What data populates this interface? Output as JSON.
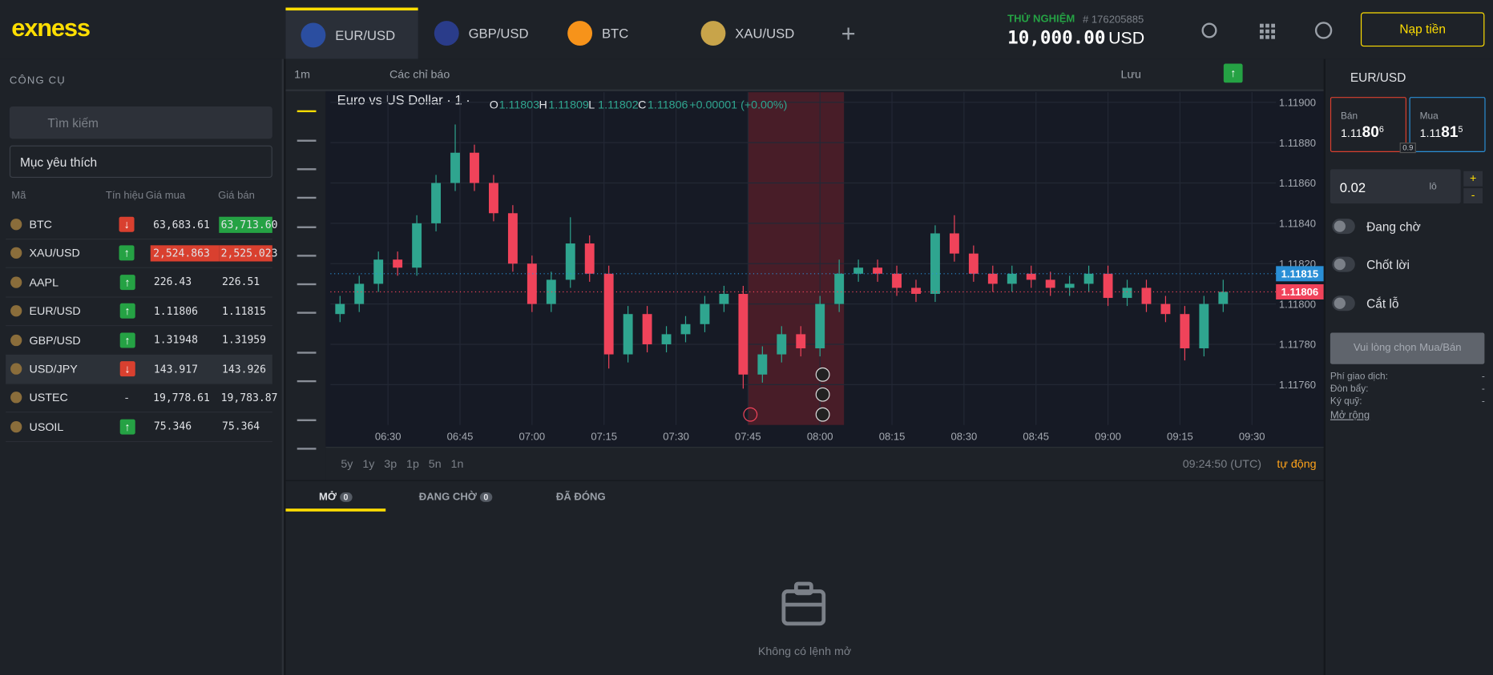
{
  "header": {
    "logo": "exness",
    "tabs": [
      "EUR/USD",
      "GBP/USD",
      "BTC",
      "XAU/USD"
    ],
    "mode": "THỬ NGHIỆM",
    "account_id": "# 176205885",
    "balance": "10,000.00",
    "currency": "USD",
    "deposit": "Nạp tiền"
  },
  "sidebar": {
    "title": "CÔNG CỤ",
    "search": "Tìm kiếm",
    "list": "Mục yêu thích",
    "columns": [
      "Mã",
      "Tín hiệu",
      "Giá mua",
      "Giá bán"
    ],
    "rows": [
      {
        "symbol": "BTC",
        "signal": "↓",
        "bid": "63,683.61",
        "ask": "63,713.60",
        "ask_bg": "#25a244"
      },
      {
        "symbol": "XAU/USD",
        "signal": "↑",
        "bid": "2,524.863",
        "ask": "2,525.023",
        "bid_bg": "#d9402f",
        "ask_bg": "#d9402f"
      },
      {
        "symbol": "AAPL",
        "signal": "↑",
        "bid": "226.43",
        "ask": "226.51"
      },
      {
        "symbol": "EUR/USD",
        "signal": "↑",
        "bid": "1.11806",
        "ask": "1.11815"
      },
      {
        "symbol": "GBP/USD",
        "signal": "↑",
        "bid": "1.31948",
        "ask": "1.31959"
      },
      {
        "symbol": "USD/JPY",
        "signal": "↓",
        "bid": "143.917",
        "ask": "143.926"
      },
      {
        "symbol": "USTEC",
        "signal": "-",
        "bid": "19,778.61",
        "ask": "19,783.87"
      },
      {
        "symbol": "USOIL",
        "signal": "↑",
        "bid": "75.346",
        "ask": "75.364"
      }
    ]
  },
  "toolbar": {
    "interval": "1m",
    "indicators": "Các chỉ báo",
    "save": "Lưu"
  },
  "chart_data": {
    "type": "candlestick",
    "title": "Euro vs US Dollar · 1 ·",
    "ohlc": [
      {
        "label": "O",
        "value": "1.11803"
      },
      {
        "label": "H",
        "value": "1.11809"
      },
      {
        "label": "L",
        "value": "1.11802"
      },
      {
        "label": "C",
        "value": "1.11806"
      }
    ],
    "change": "+0.00001 (+0.00%)",
    "x": [
      "06:20",
      "06:24",
      "06:28",
      "06:32",
      "06:36",
      "06:40",
      "06:44",
      "06:48",
      "06:52",
      "06:56",
      "07:00",
      "07:04",
      "07:08",
      "07:12",
      "07:16",
      "07:20",
      "07:24",
      "07:28",
      "07:32",
      "07:36",
      "07:40",
      "07:44",
      "07:48",
      "07:52",
      "07:56",
      "08:00",
      "08:04",
      "08:08",
      "08:12",
      "08:16",
      "08:20",
      "08:24",
      "08:28",
      "08:32",
      "08:36",
      "08:40",
      "08:44",
      "08:48",
      "08:52",
      "08:56",
      "09:00",
      "09:04",
      "09:08",
      "09:12",
      "09:16",
      "09:20",
      "09:24"
    ],
    "open": [
      1.11795,
      1.118,
      1.1181,
      1.11822,
      1.11818,
      1.1184,
      1.1186,
      1.11875,
      1.1186,
      1.11845,
      1.1182,
      1.118,
      1.11812,
      1.1183,
      1.11815,
      1.11775,
      1.11795,
      1.1178,
      1.11785,
      1.1179,
      1.118,
      1.11805,
      1.11765,
      1.11775,
      1.11785,
      1.11778,
      1.118,
      1.11815,
      1.11818,
      1.11815,
      1.11808,
      1.11805,
      1.11835,
      1.11825,
      1.11815,
      1.1181,
      1.11815,
      1.11812,
      1.11808,
      1.1181,
      1.11815,
      1.11803,
      1.11808,
      1.118,
      1.11795,
      1.11778,
      1.118
    ],
    "high": [
      1.11804,
      1.11814,
      1.11826,
      1.11826,
      1.11844,
      1.11864,
      1.11889,
      1.11879,
      1.11864,
      1.11849,
      1.11824,
      1.11816,
      1.11843,
      1.11834,
      1.11819,
      1.11799,
      1.11799,
      1.11789,
      1.11794,
      1.11804,
      1.11809,
      1.11809,
      1.11779,
      1.11789,
      1.11789,
      1.11804,
      1.11822,
      1.11822,
      1.11822,
      1.11819,
      1.11812,
      1.11839,
      1.11844,
      1.11829,
      1.11819,
      1.11819,
      1.11819,
      1.11816,
      1.11814,
      1.11819,
      1.11819,
      1.11812,
      1.11812,
      1.11804,
      1.11799,
      1.11804,
      1.11812
    ],
    "low": [
      1.11791,
      1.11796,
      1.11806,
      1.11814,
      1.11814,
      1.11836,
      1.11856,
      1.11856,
      1.11841,
      1.11816,
      1.11796,
      1.11796,
      1.11808,
      1.11811,
      1.11768,
      1.11771,
      1.11776,
      1.11776,
      1.11781,
      1.11786,
      1.11796,
      1.11758,
      1.11761,
      1.11771,
      1.11774,
      1.11774,
      1.11796,
      1.11811,
      1.11811,
      1.11804,
      1.11801,
      1.11801,
      1.11821,
      1.11811,
      1.11806,
      1.11806,
      1.11808,
      1.11804,
      1.11804,
      1.11806,
      1.11799,
      1.11799,
      1.11796,
      1.11791,
      1.11772,
      1.11774,
      1.11796
    ],
    "close": [
      1.118,
      1.1181,
      1.11822,
      1.11818,
      1.1184,
      1.1186,
      1.11875,
      1.1186,
      1.11845,
      1.1182,
      1.118,
      1.11812,
      1.1183,
      1.11815,
      1.11775,
      1.11795,
      1.1178,
      1.11785,
      1.1179,
      1.118,
      1.11805,
      1.11765,
      1.11775,
      1.11785,
      1.11778,
      1.118,
      1.11815,
      1.11818,
      1.11815,
      1.11808,
      1.11805,
      1.11835,
      1.11825,
      1.11815,
      1.1181,
      1.11815,
      1.11812,
      1.11808,
      1.1181,
      1.11815,
      1.11803,
      1.11808,
      1.118,
      1.11795,
      1.11778,
      1.118,
      1.11806
    ],
    "up_color": "#2fa58f",
    "down_color": "#f0435a",
    "xlim": [
      "06:18",
      "09:35"
    ],
    "xticks": [
      "06:30",
      "06:45",
      "07:00",
      "07:15",
      "07:30",
      "07:45",
      "08:00",
      "08:15",
      "08:30",
      "08:45",
      "09:00",
      "09:15",
      "09:30"
    ],
    "ylim": [
      1.1174,
      1.11905
    ],
    "yticks": [
      {
        "value": 1.1176,
        "label": "1.11760"
      },
      {
        "value": 1.1178,
        "label": "1.11780"
      },
      {
        "value": 1.118,
        "label": "1.11800"
      },
      {
        "value": 1.1182,
        "label": "1.11820"
      },
      {
        "value": 1.1184,
        "label": "1.11840"
      },
      {
        "value": 1.1186,
        "label": "1.11860"
      },
      {
        "value": 1.1188,
        "label": "1.11880"
      },
      {
        "value": 1.119,
        "label": "1.11900"
      }
    ],
    "ask_line": 1.11815,
    "bid_line": 1.11806,
    "highlight": [
      "07:45",
      "08:05"
    ],
    "grid": true
  },
  "chart_footer": {
    "ranges": [
      "5y",
      "1y",
      "3p",
      "1p",
      "5n",
      "1n"
    ],
    "clock": "09:24:50 (UTC)",
    "auto": "tự động"
  },
  "bottom": {
    "tabs": [
      {
        "label": "MỞ",
        "count": 0
      },
      {
        "label": "ĐANG CHỜ",
        "count": 0
      },
      {
        "label": "ĐÃ ĐÓNG"
      }
    ],
    "empty": "Không có lệnh mở"
  },
  "order_panel": {
    "symbol": "EUR/USD",
    "sell": {
      "label": "Bán",
      "big": "1.11",
      "pips": "80",
      "frac": "6"
    },
    "buy": {
      "label": "Mua",
      "big": "1.11",
      "pips": "81",
      "frac": "5"
    },
    "spread": "0.9",
    "volume": "0.02",
    "unit": "lô",
    "plus": "+",
    "minus": "-",
    "toggles": [
      "Đang chờ",
      "Chốt lời",
      "Cắt lỗ"
    ],
    "button": "Vui lòng chọn Mua/Bán",
    "info": [
      {
        "label": "Phí giao dịch:",
        "value": "-"
      },
      {
        "label": "Đòn bẩy:",
        "value": "-"
      },
      {
        "label": "Ký quỹ:",
        "value": "-"
      }
    ],
    "more": "Mở rộng"
  }
}
